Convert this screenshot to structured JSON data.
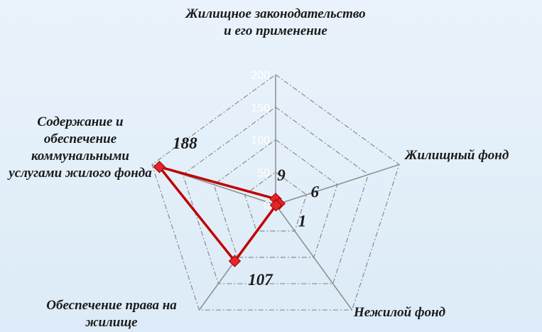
{
  "chart_data": {
    "type": "radar",
    "categories": [
      "Жилищное законодательство и его применение",
      "Жилищный фонд",
      "Нежилой фонд",
      "Обеспечение права на жилище",
      "Содержание и обеспечение коммунальными услугами жилого фонда"
    ],
    "series": [
      {
        "color": "#c00000",
        "values": [
          9,
          6,
          1,
          107,
          188
        ]
      }
    ],
    "ylim": [
      0,
      200
    ],
    "yticks": [
      0,
      50,
      100,
      150,
      200
    ],
    "grid": true
  }
}
